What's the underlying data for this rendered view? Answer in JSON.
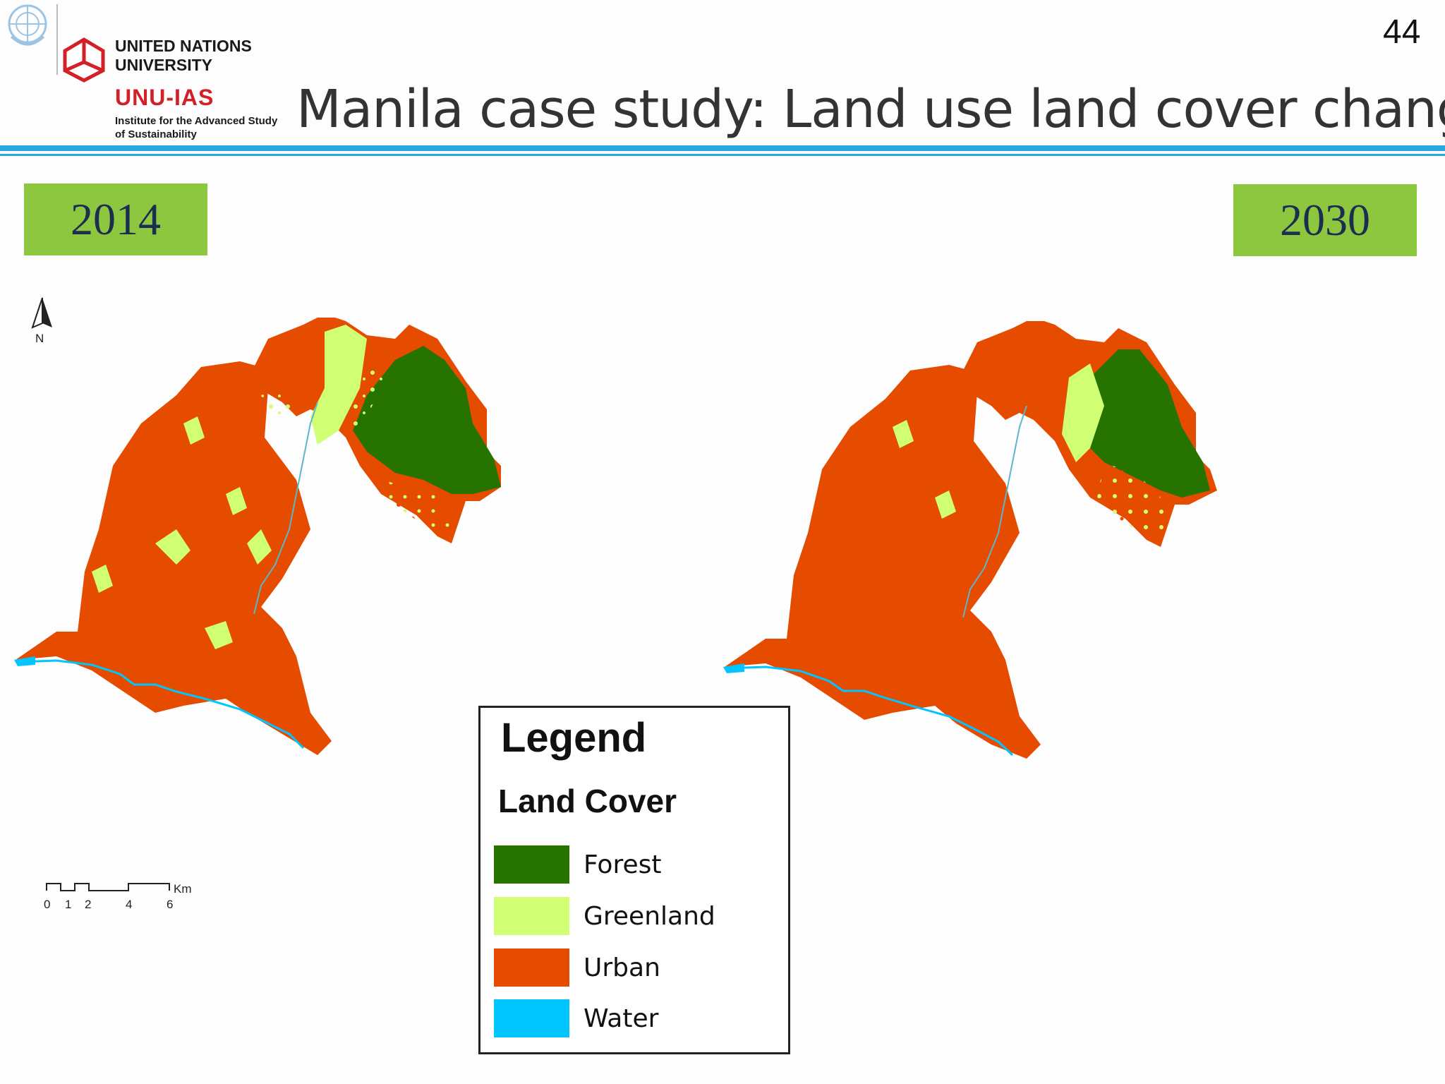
{
  "header": {
    "page_number": "44",
    "title": "Manila case study: Land use land cover change",
    "org_line1": "UNITED NATIONS",
    "org_line2": "UNIVERSITY",
    "org_unit": "UNU-IAS",
    "institute_line1": "Institute for the Advanced Study",
    "institute_line2": "of Sustainability"
  },
  "maps": [
    {
      "year": "2014"
    },
    {
      "year": "2030"
    }
  ],
  "north_arrow": {
    "label": "N"
  },
  "scale_bar": {
    "ticks": [
      "0",
      "1",
      "2",
      "4",
      "6"
    ],
    "unit": "Km"
  },
  "legend": {
    "title": "Legend",
    "subtitle": "Land Cover",
    "items": [
      {
        "label": "Forest",
        "color": "#267300"
      },
      {
        "label": "Greenland",
        "color": "#d1ff73"
      },
      {
        "label": "Urban",
        "color": "#e64c00"
      },
      {
        "label": "Water",
        "color": "#00c5ff"
      }
    ]
  },
  "colors": {
    "accent_rule": "#2aa7e0",
    "badge": "#8dc63f",
    "badge_text": "#1c2e50",
    "unu_red": "#d32027"
  }
}
